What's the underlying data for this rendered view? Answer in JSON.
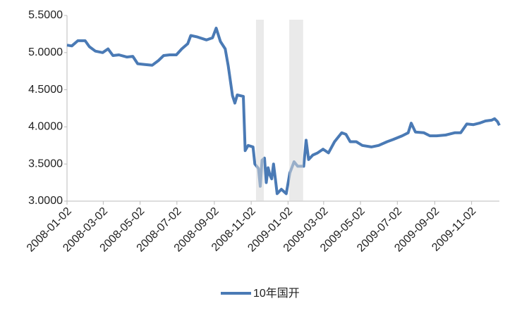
{
  "chart_data": {
    "type": "line",
    "x": [
      "2008-01-02",
      "2008-01-10",
      "2008-01-20",
      "2008-02-01",
      "2008-02-08",
      "2008-02-18",
      "2008-03-01",
      "2008-03-10",
      "2008-03-18",
      "2008-03-28",
      "2008-04-10",
      "2008-04-20",
      "2008-04-28",
      "2008-05-10",
      "2008-05-22",
      "2008-06-01",
      "2008-06-10",
      "2008-06-20",
      "2008-07-01",
      "2008-07-10",
      "2008-07-20",
      "2008-07-25",
      "2008-08-05",
      "2008-08-20",
      "2008-08-30",
      "2008-09-05",
      "2008-09-12",
      "2008-09-20",
      "2008-09-25",
      "2008-10-02",
      "2008-10-06",
      "2008-10-10",
      "2008-10-20",
      "2008-10-23",
      "2008-10-28",
      "2008-11-05",
      "2008-11-08",
      "2008-11-14",
      "2008-11-17",
      "2008-11-20",
      "2008-11-24",
      "2008-11-27",
      "2008-11-30",
      "2008-12-03",
      "2008-12-06",
      "2008-12-09",
      "2008-12-12",
      "2008-12-15",
      "2008-12-22",
      "2008-12-30",
      "2009-01-05",
      "2009-01-12",
      "2009-01-18",
      "2009-01-28",
      "2009-02-01",
      "2009-02-05",
      "2009-02-12",
      "2009-02-20",
      "2009-03-01",
      "2009-03-10",
      "2009-03-20",
      "2009-04-01",
      "2009-04-08",
      "2009-04-15",
      "2009-04-25",
      "2009-05-05",
      "2009-05-20",
      "2009-06-01",
      "2009-06-15",
      "2009-06-25",
      "2009-07-10",
      "2009-07-20",
      "2009-07-25",
      "2009-08-01",
      "2009-08-15",
      "2009-08-25",
      "2009-09-05",
      "2009-09-20",
      "2009-10-05",
      "2009-10-15",
      "2009-10-25",
      "2009-11-05",
      "2009-11-15",
      "2009-11-25",
      "2009-12-05",
      "2009-12-10",
      "2009-12-15",
      "2009-12-18"
    ],
    "series": [
      {
        "name": "10年国开",
        "color": "#4a7ab5",
        "values": [
          5.1,
          5.09,
          5.16,
          5.16,
          5.08,
          5.02,
          5.0,
          5.05,
          4.96,
          4.97,
          4.94,
          4.95,
          4.85,
          4.84,
          4.83,
          4.89,
          4.96,
          4.97,
          4.97,
          5.05,
          5.12,
          5.23,
          5.21,
          5.17,
          5.2,
          5.33,
          5.15,
          5.05,
          4.82,
          4.42,
          4.32,
          4.43,
          4.41,
          3.68,
          3.75,
          3.73,
          3.5,
          3.44,
          3.2,
          3.55,
          3.58,
          3.25,
          3.45,
          3.35,
          3.3,
          3.5,
          3.3,
          3.1,
          3.16,
          3.1,
          3.38,
          3.53,
          3.47,
          3.47,
          3.82,
          3.56,
          3.62,
          3.65,
          3.7,
          3.65,
          3.8,
          3.92,
          3.9,
          3.8,
          3.8,
          3.75,
          3.73,
          3.75,
          3.8,
          3.83,
          3.88,
          3.92,
          4.05,
          3.93,
          3.92,
          3.88,
          3.88,
          3.89,
          3.92,
          3.92,
          4.04,
          4.03,
          4.05,
          4.08,
          4.09,
          4.11,
          4.07,
          4.02
        ]
      }
    ],
    "shaded_periods": [
      {
        "start": "2008-11-10",
        "end": "2008-11-23"
      },
      {
        "start": "2009-01-04",
        "end": "2009-01-27"
      }
    ],
    "xlim": [
      "2008-01-02",
      "2009-12-18"
    ],
    "xticks": [
      "2008-01-02",
      "2008-03-02",
      "2008-05-02",
      "2008-07-02",
      "2008-09-02",
      "2008-11-02",
      "2009-01-02",
      "2009-03-02",
      "2009-05-02",
      "2009-07-02",
      "2009-09-02",
      "2009-11-02"
    ],
    "ylim": [
      3,
      5.5
    ],
    "yticks": [
      {
        "value": 3,
        "label": "3.0000"
      },
      {
        "value": 3.5,
        "label": "3.5000"
      },
      {
        "value": 4,
        "label": "4.0000"
      },
      {
        "value": 4.5,
        "label": "4.5000"
      },
      {
        "value": 5,
        "label": "5.0000"
      },
      {
        "value": 5.5,
        "label": "5.5000"
      }
    ],
    "legend": "bottom"
  }
}
